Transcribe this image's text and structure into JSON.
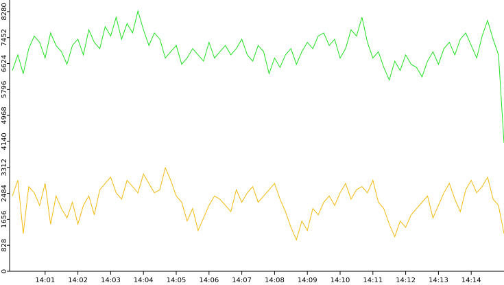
{
  "chart_data": {
    "type": "line",
    "xlim": [
      "14:00",
      "14:15"
    ],
    "xticks": [
      "14:01",
      "14:02",
      "14:03",
      "14:04",
      "14:05",
      "14:06",
      "14:07",
      "14:08",
      "14:09",
      "14:10",
      "14:11",
      "14:12",
      "14:13",
      "14:14"
    ],
    "ylim": [
      0,
      8650
    ],
    "yticks": [
      0,
      828,
      1656,
      2484,
      3312,
      4140,
      4968,
      5796,
      6624,
      7452,
      8280
    ],
    "series": [
      {
        "color": "#1fe01f",
        "values": [
          6400,
          6900,
          6300,
          7100,
          7500,
          7300,
          6800,
          7600,
          7200,
          7000,
          6600,
          7200,
          7400,
          6900,
          7700,
          7300,
          7100,
          7800,
          7500,
          8100,
          7400,
          7900,
          7600,
          8300,
          7700,
          7200,
          7600,
          7400,
          6800,
          7000,
          7200,
          6600,
          6800,
          7100,
          6900,
          6700,
          7300,
          6800,
          7000,
          7200,
          6900,
          7100,
          7400,
          6900,
          6700,
          7200,
          7000,
          6300,
          6800,
          6500,
          6900,
          7100,
          6600,
          7000,
          7300,
          7100,
          7500,
          7600,
          7200,
          7400,
          6800,
          7100,
          7700,
          7500,
          8100,
          7300,
          6800,
          7000,
          6500,
          6100,
          6700,
          6400,
          6900,
          6600,
          6500,
          6200,
          6700,
          7000,
          6600,
          7100,
          7300,
          6900,
          7400,
          7600,
          7200,
          6800,
          7500,
          8000,
          7400,
          6900,
          4100
        ]
      },
      {
        "color": "#f2b90c",
        "values": [
          2400,
          2900,
          1200,
          2700,
          2500,
          2100,
          2800,
          1500,
          2400,
          2000,
          1700,
          2200,
          1500,
          2100,
          2400,
          1800,
          2600,
          2800,
          3000,
          2500,
          2300,
          2900,
          2700,
          2500,
          3100,
          2800,
          2500,
          2600,
          3300,
          2900,
          2400,
          2200,
          1600,
          2000,
          1300,
          1700,
          2100,
          2400,
          2300,
          2100,
          1900,
          2600,
          2200,
          2500,
          2700,
          2200,
          2400,
          2600,
          2800,
          2300,
          1900,
          1400,
          1000,
          1600,
          1300,
          2000,
          1800,
          2200,
          2400,
          2100,
          2500,
          2800,
          2300,
          2600,
          2700,
          2500,
          2900,
          2200,
          2000,
          1500,
          1100,
          1600,
          1400,
          1800,
          2000,
          2200,
          2400,
          1700,
          2100,
          2500,
          2800,
          2300,
          1900,
          2600,
          2900,
          2500,
          2700,
          3000,
          2300,
          2100,
          1200
        ]
      }
    ]
  }
}
